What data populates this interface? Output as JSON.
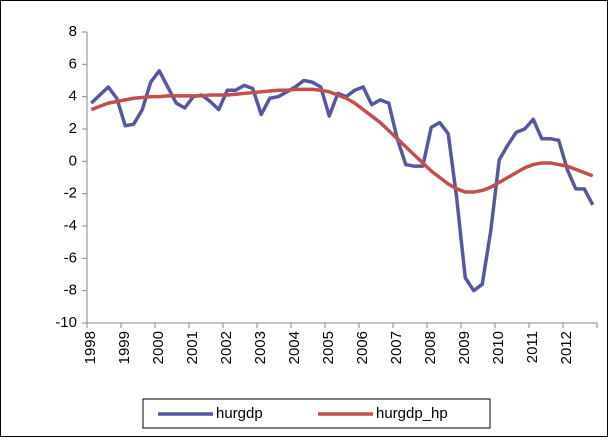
{
  "chart_data": {
    "type": "line",
    "categories": [
      "1998",
      null,
      null,
      null,
      "1999",
      null,
      null,
      null,
      "2000",
      null,
      null,
      null,
      "2001",
      null,
      null,
      null,
      "2002",
      null,
      null,
      null,
      "2003",
      null,
      null,
      null,
      "2004",
      null,
      null,
      null,
      "2005",
      null,
      null,
      null,
      "2006",
      null,
      null,
      null,
      "2007",
      null,
      null,
      null,
      "2008",
      null,
      null,
      null,
      "2009",
      null,
      null,
      null,
      "2010",
      null,
      null,
      null,
      "2011",
      null,
      null,
      null,
      "2012",
      null,
      null,
      null
    ],
    "series": [
      {
        "name": "hurgdp",
        "color": "#5558a0",
        "values": [
          3.6,
          4.1,
          4.6,
          3.9,
          2.2,
          2.3,
          3.2,
          4.9,
          5.6,
          4.6,
          3.6,
          3.3,
          4.0,
          4.1,
          3.7,
          3.2,
          4.4,
          4.4,
          4.7,
          4.5,
          2.9,
          3.9,
          4.0,
          4.3,
          4.6,
          5.0,
          4.9,
          4.6,
          2.8,
          4.2,
          4.0,
          4.4,
          4.6,
          3.5,
          3.8,
          3.6,
          1.4,
          -0.2,
          -0.3,
          -0.3,
          2.1,
          2.4,
          1.7,
          -2.3,
          -7.2,
          -8.0,
          -7.6,
          -4.3,
          0.1,
          1.0,
          1.8,
          2.0,
          2.6,
          1.4,
          1.4,
          1.3,
          -0.5,
          -1.7,
          -1.7,
          -2.7
        ]
      },
      {
        "name": "hurgdp_hp",
        "color": "#c0504d",
        "values": [
          3.2,
          3.4,
          3.6,
          3.7,
          3.8,
          3.9,
          3.95,
          4.0,
          4.0,
          4.05,
          4.05,
          4.05,
          4.05,
          4.05,
          4.1,
          4.1,
          4.1,
          4.15,
          4.2,
          4.25,
          4.3,
          4.35,
          4.4,
          4.4,
          4.45,
          4.45,
          4.45,
          4.4,
          4.3,
          4.1,
          3.9,
          3.6,
          3.2,
          2.8,
          2.4,
          1.9,
          1.4,
          0.9,
          0.4,
          -0.1,
          -0.6,
          -1.0,
          -1.4,
          -1.7,
          -1.9,
          -1.9,
          -1.8,
          -1.6,
          -1.3,
          -1.0,
          -0.7,
          -0.4,
          -0.2,
          -0.1,
          -0.1,
          -0.2,
          -0.3,
          -0.5,
          -0.7,
          -0.9
        ]
      }
    ],
    "ylim": [
      -10,
      8
    ],
    "yticks": [
      -10,
      -8,
      -6,
      -4,
      -2,
      0,
      2,
      4,
      6,
      8
    ],
    "legend": "bottom"
  }
}
